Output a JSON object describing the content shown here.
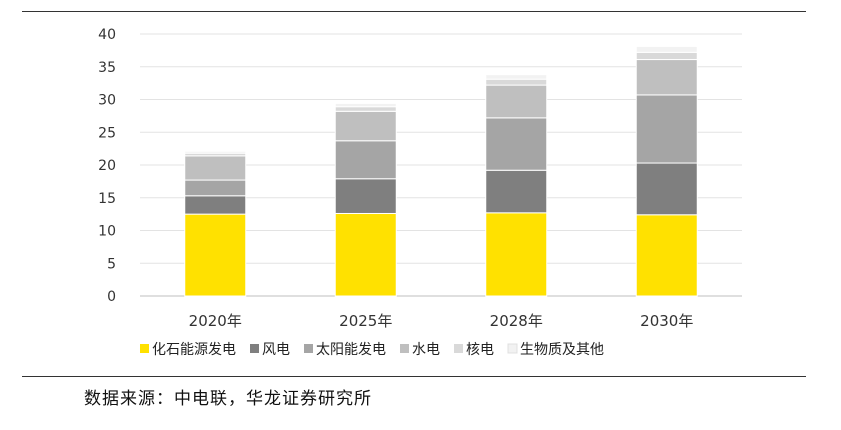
{
  "chart_data": {
    "type": "bar",
    "stacked": true,
    "categories": [
      "2020年",
      "2025年",
      "2028年",
      "2030年"
    ],
    "series": [
      {
        "name": "化石能源发电",
        "values": [
          12.5,
          12.6,
          12.7,
          12.4
        ],
        "color": "#FFE100"
      },
      {
        "name": "风电",
        "values": [
          2.8,
          5.3,
          6.5,
          7.9
        ],
        "color": "#7F7F7F"
      },
      {
        "name": "太阳能发电",
        "values": [
          2.4,
          5.8,
          8.0,
          10.4
        ],
        "color": "#A5A5A5"
      },
      {
        "name": "水电",
        "values": [
          3.7,
          4.5,
          5.0,
          5.4
        ],
        "color": "#BFBFBF"
      },
      {
        "name": "核电",
        "values": [
          0.4,
          0.7,
          0.9,
          1.1
        ],
        "color": "#D9D9D9"
      },
      {
        "name": "生物质及其他",
        "values": [
          0.3,
          0.5,
          0.7,
          0.9
        ],
        "color": "#F2F2F2"
      }
    ],
    "yticks": [
      "0",
      "5",
      "10",
      "15",
      "20",
      "25",
      "30",
      "35",
      "40"
    ],
    "ylim": [
      0,
      40
    ],
    "grid": true,
    "legend": "bottom"
  },
  "source_note": "数据来源：中电联，华龙证券研究所"
}
